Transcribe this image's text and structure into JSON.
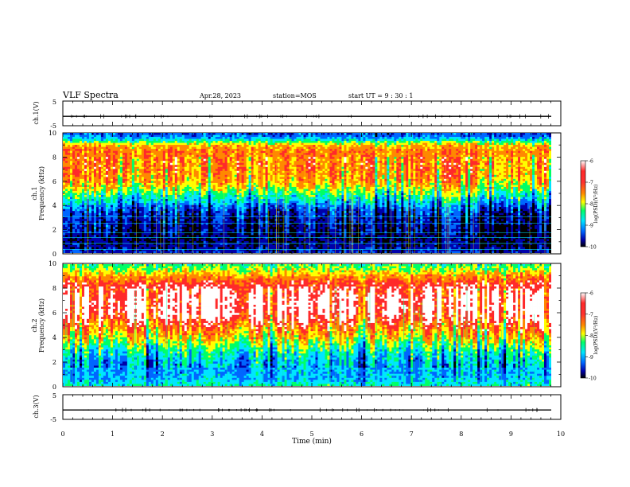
{
  "header": {
    "title": "VLF Spectra",
    "date": "Apr.28, 2023",
    "station": "station=MOS",
    "start": "start UT =  9 : 30 : 1"
  },
  "colors": {
    "scale": [
      "#ffffff",
      "#ff2a2a",
      "#ff8800",
      "#ffff00",
      "#00ff66",
      "#00e5ff",
      "#0066ff",
      "#0000aa",
      "#000000"
    ]
  },
  "chart_data": [
    {
      "type": "line",
      "panel": "ch1-waveform",
      "ylabel": "ch.1(V)",
      "ylim": [
        -5,
        5
      ],
      "ytick_labels": [
        "5",
        "-5"
      ],
      "x": [
        0,
        10
      ],
      "values": [
        -1.2,
        -1.2
      ],
      "description_note": ""
    },
    {
      "type": "heatmap",
      "panel": "ch1-spectrogram",
      "ylabel": "ch.1\nFrequency (kHz)",
      "ylim": [
        0,
        10
      ],
      "ytick_labels": [
        "0",
        "2",
        "4",
        "6",
        "8",
        "10"
      ],
      "xlim": [
        0,
        10
      ],
      "frequency_profile_khz": [
        0,
        0.5,
        1,
        1.5,
        2,
        2.5,
        3,
        3.5,
        4,
        4.5,
        5,
        5.5,
        6,
        6.5,
        7,
        7.5,
        8,
        8.5,
        9,
        9.5,
        10
      ],
      "log_psd_profile": [
        -9.3,
        -9.6,
        -9.7,
        -9.7,
        -9.6,
        -9.5,
        -9.4,
        -9.2,
        -8.8,
        -8.3,
        -7.9,
        -7.4,
        -7.1,
        -7.0,
        -6.9,
        -6.9,
        -6.9,
        -6.9,
        -7.2,
        -8.6,
        -9.2
      ],
      "colorbar": {
        "label": "log(PSD)(V²/Hz)",
        "range": [
          -10,
          -6
        ],
        "ticks": [
          "-6",
          "-7",
          "-8",
          "-9",
          "-10"
        ]
      }
    },
    {
      "type": "heatmap",
      "panel": "ch2-spectrogram",
      "ylabel": "ch.2\nFrequency (kHz)",
      "ylim": [
        0,
        10
      ],
      "ytick_labels": [
        "0",
        "2",
        "4",
        "6",
        "8",
        "10"
      ],
      "xlim": [
        0,
        10
      ],
      "frequency_profile_khz": [
        0,
        0.5,
        1,
        1.5,
        2,
        2.5,
        3,
        3.5,
        4,
        4.5,
        5,
        5.5,
        6,
        6.5,
        7,
        7.5,
        8,
        8.5,
        9,
        9.5,
        10
      ],
      "log_psd_profile": [
        -8.2,
        -8.6,
        -8.7,
        -8.7,
        -8.6,
        -8.4,
        -8.1,
        -7.7,
        -7.3,
        -7.0,
        -6.7,
        -6.3,
        -6.1,
        -6.0,
        -6.0,
        -6.1,
        -6.3,
        -6.6,
        -7.0,
        -7.6,
        -8.0
      ],
      "colorbar": {
        "label": "log(PSD)(V²/Hz)",
        "range": [
          -10,
          -6
        ],
        "ticks": [
          "-6",
          "-7",
          "-8",
          "-9",
          "-10"
        ]
      }
    },
    {
      "type": "line",
      "panel": "ch3-waveform",
      "ylabel": "ch.3(V)",
      "ylim": [
        -5,
        5
      ],
      "ytick_labels": [
        "5",
        "-5"
      ],
      "x": [
        0,
        10
      ],
      "values": [
        -1.2,
        -1.2
      ]
    }
  ],
  "xaxis": {
    "label": "Time (min)",
    "ticks": [
      "0",
      "1",
      "2",
      "3",
      "4",
      "5",
      "6",
      "7",
      "8",
      "9",
      "10"
    ],
    "range": [
      0,
      10
    ]
  }
}
